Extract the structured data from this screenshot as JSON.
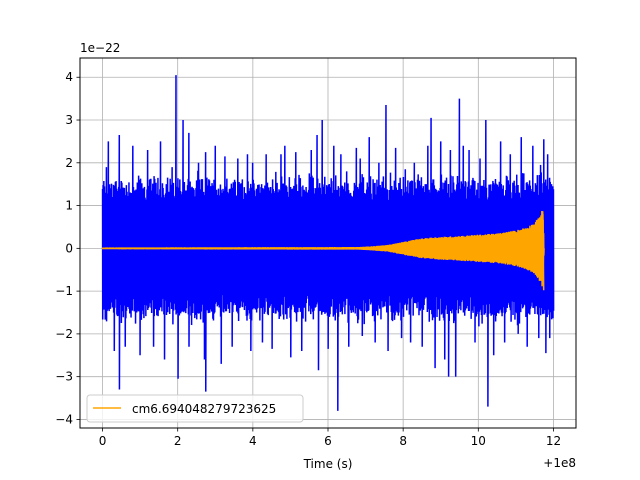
{
  "chart_data": {
    "type": "line",
    "title": "",
    "xlabel": "Time (s)",
    "ylabel": "",
    "x_offset_text": "+1e8",
    "y_scale_text": "1e−22",
    "xlim": [
      -0.6,
      12.6
    ],
    "ylim": [
      -4.2,
      4.45
    ],
    "xticks": [
      0,
      2,
      4,
      6,
      8,
      10,
      12
    ],
    "xtick_labels": [
      "0",
      "2",
      "4",
      "6",
      "8",
      "10",
      "12"
    ],
    "yticks": [
      -4,
      -3,
      -2,
      -1,
      0,
      1,
      2,
      3,
      4
    ],
    "ytick_labels": [
      "−4",
      "−3",
      "−2",
      "−1",
      "0",
      "1",
      "2",
      "3",
      "4"
    ],
    "grid": true,
    "legend_position": "lower-left",
    "series": [
      {
        "name": "",
        "color": "#0000ff",
        "style": "noise",
        "x_range": [
          0,
          12
        ],
        "core_amplitude": 1.05,
        "spikes": [
          {
            "x": 0.1,
            "y": 1.9
          },
          {
            "x": 0.15,
            "y": 2.5
          },
          {
            "x": 0.3,
            "y": -2.4
          },
          {
            "x": 0.45,
            "y": 2.65
          },
          {
            "x": 0.45,
            "y": -3.3
          },
          {
            "x": 0.6,
            "y": -2.3
          },
          {
            "x": 0.8,
            "y": 2.4
          },
          {
            "x": 1.0,
            "y": -2.5
          },
          {
            "x": 1.2,
            "y": 2.3
          },
          {
            "x": 1.35,
            "y": -2.3
          },
          {
            "x": 1.55,
            "y": 2.5
          },
          {
            "x": 1.65,
            "y": -2.6
          },
          {
            "x": 1.85,
            "y": 1.9
          },
          {
            "x": 1.95,
            "y": 4.05
          },
          {
            "x": 2.0,
            "y": -3.05
          },
          {
            "x": 2.15,
            "y": 3.0
          },
          {
            "x": 2.3,
            "y": 2.7
          },
          {
            "x": 2.3,
            "y": -2.3
          },
          {
            "x": 2.55,
            "y": 2.0
          },
          {
            "x": 2.7,
            "y": -2.6
          },
          {
            "x": 2.75,
            "y": 2.25
          },
          {
            "x": 2.75,
            "y": -3.35
          },
          {
            "x": 3.0,
            "y": 2.4
          },
          {
            "x": 3.15,
            "y": -2.7
          },
          {
            "x": 3.25,
            "y": 2.15
          },
          {
            "x": 3.45,
            "y": -2.3
          },
          {
            "x": 3.6,
            "y": 2.1
          },
          {
            "x": 3.85,
            "y": 2.2
          },
          {
            "x": 3.95,
            "y": -2.4
          },
          {
            "x": 4.0,
            "y": 2.0
          },
          {
            "x": 4.25,
            "y": -2.2
          },
          {
            "x": 4.35,
            "y": 2.2
          },
          {
            "x": 4.5,
            "y": -2.35
          },
          {
            "x": 4.75,
            "y": 2.2
          },
          {
            "x": 4.85,
            "y": 2.4
          },
          {
            "x": 5.0,
            "y": -2.55
          },
          {
            "x": 5.15,
            "y": 2.25
          },
          {
            "x": 5.3,
            "y": -2.4
          },
          {
            "x": 5.55,
            "y": 2.3
          },
          {
            "x": 5.7,
            "y": 2.65
          },
          {
            "x": 5.75,
            "y": -2.85
          },
          {
            "x": 5.85,
            "y": 3.0
          },
          {
            "x": 6.0,
            "y": -2.35
          },
          {
            "x": 6.15,
            "y": 2.4
          },
          {
            "x": 6.25,
            "y": -3.8
          },
          {
            "x": 6.35,
            "y": 2.2
          },
          {
            "x": 6.5,
            "y": 1.8
          },
          {
            "x": 6.55,
            "y": -2.3
          },
          {
            "x": 6.75,
            "y": 2.35
          },
          {
            "x": 6.85,
            "y": 2.1
          },
          {
            "x": 6.9,
            "y": -2.05
          },
          {
            "x": 7.1,
            "y": 2.6
          },
          {
            "x": 7.25,
            "y": -2.2
          },
          {
            "x": 7.35,
            "y": 2.0
          },
          {
            "x": 7.55,
            "y": 3.35
          },
          {
            "x": 7.6,
            "y": -2.4
          },
          {
            "x": 7.8,
            "y": 2.35
          },
          {
            "x": 7.95,
            "y": -2.1
          },
          {
            "x": 8.05,
            "y": 1.85
          },
          {
            "x": 8.2,
            "y": -2.2
          },
          {
            "x": 8.3,
            "y": 2.0
          },
          {
            "x": 8.5,
            "y": -2.3
          },
          {
            "x": 8.65,
            "y": 2.4
          },
          {
            "x": 8.75,
            "y": 3.05
          },
          {
            "x": 8.85,
            "y": -2.8
          },
          {
            "x": 9.0,
            "y": 2.5
          },
          {
            "x": 9.1,
            "y": -2.6
          },
          {
            "x": 9.2,
            "y": -3.0
          },
          {
            "x": 9.25,
            "y": 2.3
          },
          {
            "x": 9.4,
            "y": -3.0
          },
          {
            "x": 9.5,
            "y": 3.5
          },
          {
            "x": 9.6,
            "y": 2.4
          },
          {
            "x": 9.75,
            "y": 2.3
          },
          {
            "x": 9.9,
            "y": -2.2
          },
          {
            "x": 10.05,
            "y": 2.1
          },
          {
            "x": 10.2,
            "y": 3.0
          },
          {
            "x": 10.25,
            "y": -3.7
          },
          {
            "x": 10.4,
            "y": -2.5
          },
          {
            "x": 10.6,
            "y": 2.5
          },
          {
            "x": 10.7,
            "y": -2.2
          },
          {
            "x": 10.85,
            "y": 2.2
          },
          {
            "x": 11.05,
            "y": -2.0
          },
          {
            "x": 11.15,
            "y": 2.6
          },
          {
            "x": 11.3,
            "y": -2.3
          },
          {
            "x": 11.45,
            "y": 2.4
          },
          {
            "x": 11.6,
            "y": -2.1
          },
          {
            "x": 11.65,
            "y": 1.95
          },
          {
            "x": 11.75,
            "y": 2.55
          },
          {
            "x": 11.8,
            "y": -2.45
          },
          {
            "x": 11.85,
            "y": 2.2
          },
          {
            "x": 11.9,
            "y": -2.1
          },
          {
            "x": 11.95,
            "y": 1.5
          },
          {
            "x": 12.0,
            "y": -1.3
          }
        ]
      },
      {
        "name": "cm6.694048279723625",
        "color": "#ffa500",
        "style": "chirp",
        "x_range": [
          0,
          11.75
        ],
        "envelope": [
          {
            "x": 0,
            "y": 0.02
          },
          {
            "x": 6.8,
            "y": 0.03
          },
          {
            "x": 7.2,
            "y": 0.05
          },
          {
            "x": 7.6,
            "y": 0.08
          },
          {
            "x": 8.0,
            "y": 0.15
          },
          {
            "x": 8.4,
            "y": 0.22
          },
          {
            "x": 8.8,
            "y": 0.26
          },
          {
            "x": 9.5,
            "y": 0.29
          },
          {
            "x": 10.5,
            "y": 0.35
          },
          {
            "x": 11.0,
            "y": 0.42
          },
          {
            "x": 11.3,
            "y": 0.5
          },
          {
            "x": 11.5,
            "y": 0.6
          },
          {
            "x": 11.6,
            "y": 0.72
          },
          {
            "x": 11.68,
            "y": 0.85
          },
          {
            "x": 11.72,
            "y": 0.95
          },
          {
            "x": 11.75,
            "y": 0.0
          }
        ]
      }
    ]
  }
}
